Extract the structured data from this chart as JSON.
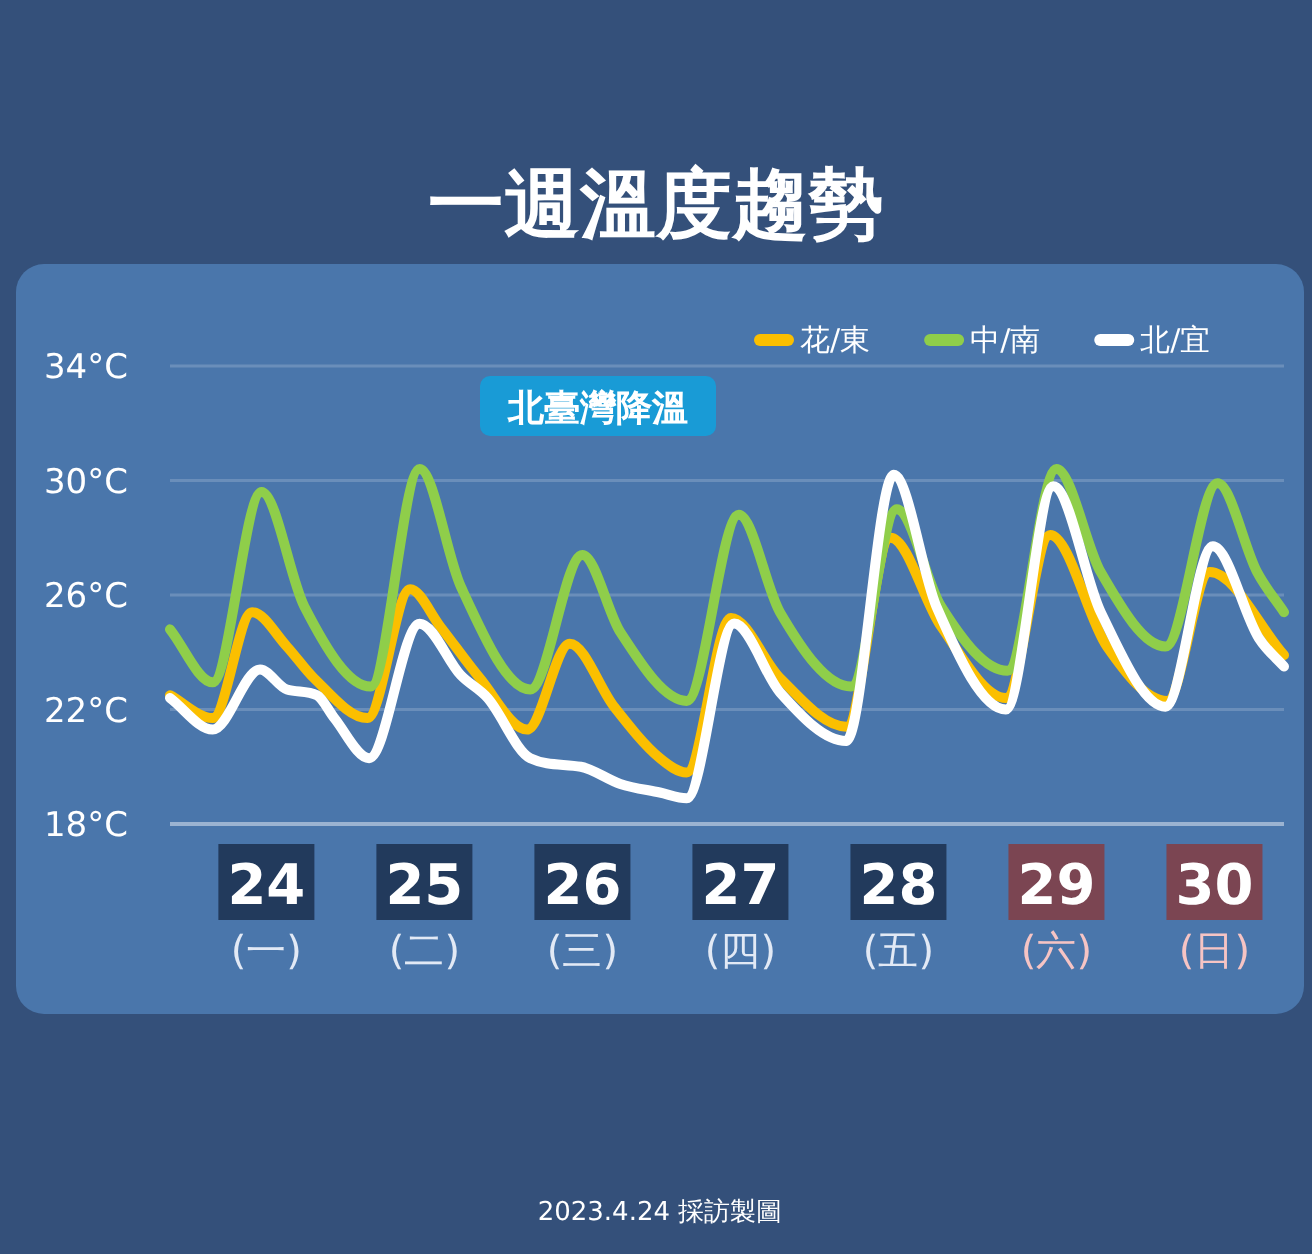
{
  "chart_data": {
    "type": "line",
    "title": "一週溫度趨勢",
    "xlim": [
      23.89,
      30.94
    ],
    "ylim": [
      18,
      34
    ],
    "yticks": [
      {
        "value": 18,
        "label": "18°C"
      },
      {
        "value": 22,
        "label": "22°C"
      },
      {
        "value": 26,
        "label": "26°C"
      },
      {
        "value": 30,
        "label": "30°C"
      },
      {
        "value": 34,
        "label": "34°C"
      }
    ],
    "xticks": [
      {
        "value": 24.5,
        "label": "24\n(一)"
      },
      {
        "value": 25.5,
        "label": "25\n(二)"
      },
      {
        "value": 26.5,
        "label": "26\n(三)"
      },
      {
        "value": 27.5,
        "label": "27\n(四)"
      },
      {
        "value": 28.5,
        "label": "28\n(五)"
      },
      {
        "value": 29.5,
        "label": "29\n(六)"
      },
      {
        "value": 30.5,
        "label": "30\n(日)"
      }
    ],
    "grid": "y",
    "legend": "top right",
    "series": [
      {
        "name": "花/東",
        "color": "#fbbf00",
        "x": [
          23.89,
          24.16,
          24.41,
          24.63,
          24.8,
          25.14,
          25.41,
          25.6,
          25.85,
          26.15,
          26.42,
          26.7,
          26.99,
          27.16,
          27.44,
          27.75,
          28.17,
          28.45,
          28.77,
          29.18,
          29.46,
          29.82,
          30.2,
          30.47,
          30.94
        ],
        "values": [
          22.5,
          21.7,
          25.4,
          24.2,
          23.1,
          21.7,
          26.2,
          24.9,
          23.1,
          21.3,
          24.3,
          22.1,
          20.3,
          19.8,
          25.2,
          23.1,
          21.4,
          28.0,
          24.9,
          22.4,
          28.1,
          24.2,
          22.3,
          26.8,
          23.9
        ]
      },
      {
        "name": "中/南",
        "color": "#8fce4a",
        "x": [
          23.89,
          24.16,
          24.47,
          24.74,
          25.16,
          25.47,
          25.73,
          26.17,
          26.5,
          26.74,
          27.16,
          27.49,
          27.75,
          28.2,
          28.49,
          28.77,
          29.19,
          29.5,
          29.78,
          30.19,
          30.52,
          30.77,
          30.94
        ],
        "values": [
          24.8,
          22.95,
          29.6,
          25.6,
          22.8,
          30.4,
          26.3,
          22.7,
          27.4,
          24.7,
          22.3,
          28.8,
          25.4,
          22.8,
          29.0,
          25.6,
          23.35,
          30.4,
          26.8,
          24.2,
          29.9,
          26.8,
          25.4
        ]
      },
      {
        "name": "北/宜",
        "color": "#ffffff",
        "x": [
          23.89,
          24.16,
          24.46,
          24.63,
          24.82,
          24.93,
          25.15,
          25.47,
          25.73,
          25.9,
          26.17,
          26.49,
          26.74,
          26.99,
          27.16,
          27.46,
          27.75,
          28.17,
          28.47,
          28.74,
          29.18,
          29.48,
          29.78,
          30.19,
          30.49,
          30.78,
          30.94
        ],
        "values": [
          22.4,
          21.3,
          23.4,
          22.7,
          22.5,
          21.7,
          20.3,
          25.0,
          23.2,
          22.4,
          20.3,
          20.0,
          19.4,
          19.1,
          18.9,
          25.0,
          22.6,
          20.9,
          30.2,
          25.6,
          22.0,
          29.8,
          25.4,
          22.1,
          27.7,
          24.5,
          23.5
        ]
      }
    ],
    "annotations": [
      "北臺灣降溫",
      "2023.4.24 採訪製圖"
    ]
  }
}
